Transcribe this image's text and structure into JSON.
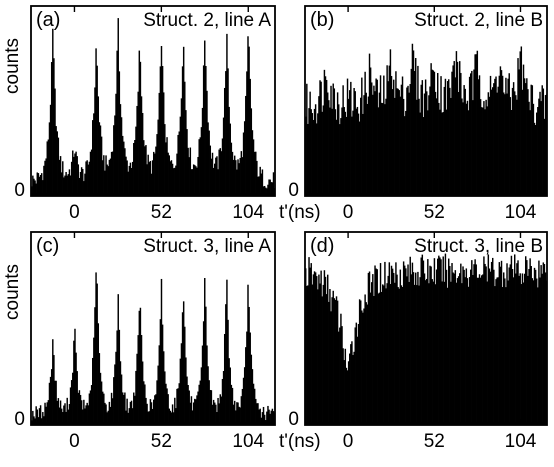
{
  "chart_data": [
    {
      "panel": "(a)",
      "type": "bar",
      "title": "Struct. 2, line A",
      "ylabel": "counts",
      "xlabel": "",
      "x_ticks": [
        "0",
        "52",
        "104"
      ],
      "y_ticks": [
        "0"
      ],
      "xlim": [
        -26,
        120
      ],
      "ylim": [
        0,
        1
      ],
      "pattern": "peaks",
      "baseline": 0.08,
      "noise": 0.05,
      "peak_width": 2.2,
      "peaks": [
        {
          "x": -13,
          "height": 0.88
        },
        {
          "x": 0,
          "height": 0.26
        },
        {
          "x": 13,
          "height": 0.82
        },
        {
          "x": 26,
          "height": 0.92
        },
        {
          "x": 39,
          "height": 0.82
        },
        {
          "x": 52,
          "height": 0.84
        },
        {
          "x": 65,
          "height": 0.86
        },
        {
          "x": 78,
          "height": 0.88
        },
        {
          "x": 91,
          "height": 0.86
        },
        {
          "x": 104,
          "height": 0.9
        }
      ]
    },
    {
      "panel": "(b)",
      "type": "bar",
      "title": "Struct. 2, line B",
      "ylabel": "",
      "xlabel": "t'(ns)",
      "x_ticks": [
        "0",
        "52",
        "104"
      ],
      "y_ticks": [
        "0"
      ],
      "xlim": [
        -26,
        120
      ],
      "ylim": [
        0,
        1
      ],
      "pattern": "peaks",
      "baseline": 0.47,
      "noise": 0.12,
      "peak_width": 3.0,
      "peaks": [
        {
          "x": -13,
          "height": 0.68
        },
        {
          "x": 0,
          "height": 0.52
        },
        {
          "x": 13,
          "height": 0.66
        },
        {
          "x": 26,
          "height": 0.72
        },
        {
          "x": 39,
          "height": 0.74
        },
        {
          "x": 52,
          "height": 0.7
        },
        {
          "x": 65,
          "height": 0.74
        },
        {
          "x": 78,
          "height": 0.72
        },
        {
          "x": 91,
          "height": 0.7
        },
        {
          "x": 104,
          "height": 0.74
        }
      ]
    },
    {
      "panel": "(c)",
      "type": "bar",
      "title": "Struct. 3, line A",
      "ylabel": "counts",
      "xlabel": "",
      "x_ticks": [
        "0",
        "52",
        "104"
      ],
      "y_ticks": [
        "0"
      ],
      "xlim": [
        -26,
        120
      ],
      "ylim": [
        0,
        1
      ],
      "pattern": "peaks",
      "baseline": 0.06,
      "noise": 0.04,
      "peak_width": 1.8,
      "peaks": [
        {
          "x": -13,
          "height": 0.46
        },
        {
          "x": 0,
          "height": 0.52
        },
        {
          "x": 13,
          "height": 0.9
        },
        {
          "x": 26,
          "height": 0.7
        },
        {
          "x": 39,
          "height": 0.72
        },
        {
          "x": 52,
          "height": 0.74
        },
        {
          "x": 65,
          "height": 0.76
        },
        {
          "x": 78,
          "height": 0.78
        },
        {
          "x": 91,
          "height": 0.78
        },
        {
          "x": 104,
          "height": 0.8
        }
      ]
    },
    {
      "panel": "(d)",
      "type": "bar",
      "title": "Struct. 3, line B",
      "ylabel": "",
      "xlabel": "t'(ns)",
      "x_ticks": [
        "0",
        "52",
        "104"
      ],
      "y_ticks": [
        "0"
      ],
      "xlim": [
        -26,
        120
      ],
      "ylim": [
        0,
        1
      ],
      "pattern": "dip",
      "baseline": 0.8,
      "noise": 0.09,
      "dip_x": 0,
      "dip_min": 0.24,
      "dip_width": 7
    }
  ]
}
